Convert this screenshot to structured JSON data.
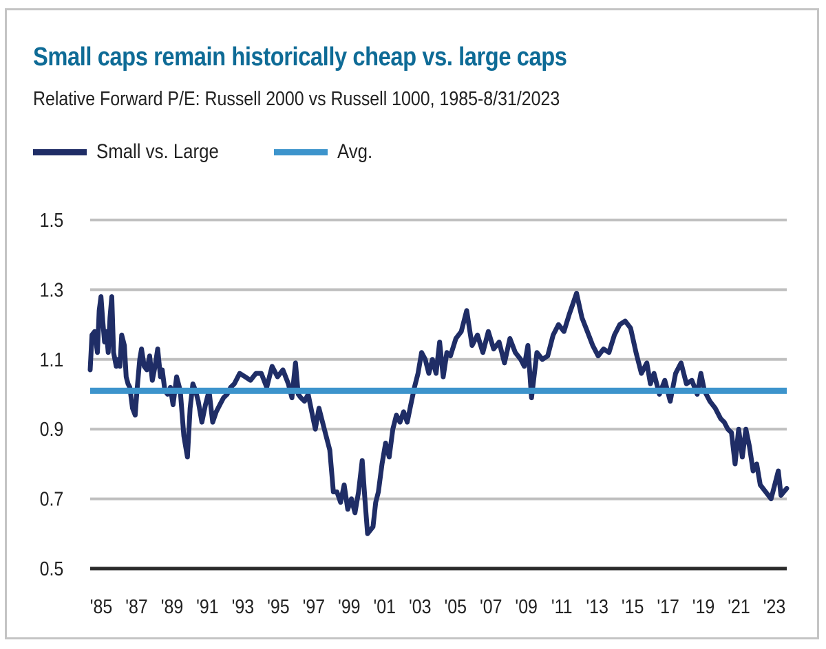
{
  "chart_data": {
    "type": "line",
    "title": "Small caps remain historically cheap vs. large caps",
    "subtitle": "Relative Forward P/E: Russell 2000 vs Russell 1000, 1985-8/31/2023",
    "xlabel": "",
    "ylabel": "",
    "ylim": [
      0.5,
      1.5
    ],
    "xlim": [
      1985.0,
      2023.67
    ],
    "yticks": [
      "1.5",
      "1.3",
      "1.1",
      "0.9",
      "0.7",
      "0.5"
    ],
    "ytick_values": [
      1.5,
      1.3,
      1.1,
      0.9,
      0.7,
      0.5
    ],
    "xticks": [
      "'85",
      "'87",
      "'89",
      "'91",
      "'93",
      "'95",
      "'97",
      "'99",
      "'01",
      "'03",
      "'05",
      "'07",
      "'09",
      "'11",
      "'13",
      "'15",
      "'17",
      "'19",
      "'21",
      "'23"
    ],
    "xtick_years": [
      1985,
      1987,
      1989,
      1991,
      1993,
      1995,
      1997,
      1999,
      2001,
      2003,
      2005,
      2007,
      2009,
      2011,
      2013,
      2015,
      2017,
      2019,
      2021,
      2023
    ],
    "grid": true,
    "legend_position": "top-left",
    "legend": [
      {
        "name": "Small vs. Large",
        "color": "#1f2d66"
      },
      {
        "name": "Avg.",
        "color": "#3d94cc"
      }
    ],
    "series": [
      {
        "name": "Small vs. Large",
        "color": "#1f2d66",
        "x": [
          1985.0,
          1985.1,
          1985.25,
          1985.4,
          1985.5,
          1985.6,
          1985.7,
          1985.8,
          1985.9,
          1986.0,
          1986.1,
          1986.2,
          1986.3,
          1986.45,
          1986.55,
          1986.65,
          1986.75,
          1986.9,
          1987.0,
          1987.1,
          1987.2,
          1987.35,
          1987.5,
          1987.6,
          1987.75,
          1987.85,
          1988.0,
          1988.15,
          1988.3,
          1988.45,
          1988.6,
          1988.75,
          1988.9,
          1989.0,
          1989.15,
          1989.3,
          1989.45,
          1989.6,
          1989.8,
          1990.0,
          1990.2,
          1990.4,
          1990.55,
          1990.7,
          1990.85,
          1991.0,
          1991.2,
          1991.4,
          1991.6,
          1991.8,
          1992.0,
          1992.2,
          1992.4,
          1992.6,
          1992.8,
          1993.0,
          1993.3,
          1993.6,
          1993.9,
          1994.2,
          1994.5,
          1994.8,
          1995.1,
          1995.4,
          1995.7,
          1996.0,
          1996.2,
          1996.4,
          1996.55,
          1996.7,
          1996.9,
          1997.1,
          1997.3,
          1997.5,
          1997.7,
          1997.9,
          1998.1,
          1998.3,
          1998.5,
          1998.7,
          1998.9,
          1999.1,
          1999.3,
          1999.5,
          1999.7,
          1999.9,
          2000.1,
          2000.25,
          2000.4,
          2000.55,
          2000.7,
          2000.85,
          2001.0,
          2001.2,
          2001.4,
          2001.6,
          2001.8,
          2002.0,
          2002.2,
          2002.4,
          2002.6,
          2002.8,
          2003.0,
          2003.2,
          2003.4,
          2003.6,
          2003.8,
          2004.0,
          2004.2,
          2004.4,
          2004.6,
          2004.8,
          2005.0,
          2005.3,
          2005.6,
          2005.9,
          2006.2,
          2006.5,
          2006.8,
          2007.1,
          2007.4,
          2007.7,
          2008.0,
          2008.3,
          2008.6,
          2008.9,
          2009.1,
          2009.3,
          2009.5,
          2009.8,
          2010.1,
          2010.4,
          2010.7,
          2011.0,
          2011.3,
          2011.6,
          2011.8,
          2012.0,
          2012.3,
          2012.6,
          2012.9,
          2013.2,
          2013.5,
          2013.8,
          2014.1,
          2014.4,
          2014.7,
          2015.0,
          2015.3,
          2015.6,
          2015.9,
          2016.1,
          2016.3,
          2016.6,
          2016.9,
          2017.2,
          2017.5,
          2017.8,
          2018.1,
          2018.4,
          2018.7,
          2018.9,
          2019.1,
          2019.4,
          2019.7,
          2020.0,
          2020.2,
          2020.4,
          2020.6,
          2020.8,
          2021.0,
          2021.2,
          2021.4,
          2021.6,
          2021.8,
          2022.0,
          2022.2,
          2022.5,
          2022.8,
          2023.0,
          2023.2,
          2023.35,
          2023.5,
          2023.67
        ],
        "values": [
          1.07,
          1.17,
          1.18,
          1.12,
          1.24,
          1.28,
          1.21,
          1.15,
          1.18,
          1.12,
          1.22,
          1.28,
          1.12,
          1.08,
          1.1,
          1.08,
          1.17,
          1.14,
          1.05,
          1.03,
          1.02,
          0.96,
          0.94,
          1.01,
          1.1,
          1.13,
          1.08,
          1.07,
          1.11,
          1.04,
          1.08,
          1.13,
          1.05,
          1.07,
          1.01,
          1.0,
          1.02,
          0.97,
          1.05,
          1.01,
          0.88,
          0.82,
          0.96,
          1.03,
          1.01,
          0.98,
          0.92,
          0.97,
          1.01,
          0.92,
          0.95,
          0.97,
          0.99,
          1.0,
          1.02,
          1.03,
          1.06,
          1.05,
          1.04,
          1.06,
          1.06,
          1.02,
          1.08,
          1.05,
          1.07,
          1.03,
          0.99,
          1.09,
          1.0,
          0.99,
          0.98,
          1.0,
          0.95,
          0.9,
          0.96,
          0.92,
          0.88,
          0.84,
          0.72,
          0.72,
          0.69,
          0.74,
          0.67,
          0.7,
          0.66,
          0.72,
          0.81,
          0.7,
          0.6,
          0.61,
          0.62,
          0.69,
          0.72,
          0.8,
          0.86,
          0.82,
          0.9,
          0.94,
          0.92,
          0.95,
          0.92,
          0.97,
          1.02,
          1.06,
          1.12,
          1.1,
          1.06,
          1.1,
          1.06,
          1.15,
          1.05,
          1.12,
          1.11,
          1.16,
          1.18,
          1.24,
          1.14,
          1.17,
          1.12,
          1.18,
          1.13,
          1.15,
          1.09,
          1.16,
          1.12,
          1.1,
          1.08,
          1.14,
          0.99,
          1.12,
          1.1,
          1.11,
          1.17,
          1.2,
          1.18,
          1.23,
          1.26,
          1.29,
          1.22,
          1.18,
          1.14,
          1.11,
          1.13,
          1.12,
          1.17,
          1.2,
          1.21,
          1.19,
          1.12,
          1.06,
          1.09,
          1.03,
          1.06,
          1.0,
          1.04,
          0.98,
          1.06,
          1.09,
          1.03,
          1.04,
          1.0,
          1.06,
          1.01,
          0.98,
          0.96,
          0.93,
          0.92,
          0.9,
          0.89,
          0.8,
          0.9,
          0.82,
          0.9,
          0.85,
          0.78,
          0.8,
          0.74,
          0.72,
          0.7,
          0.74,
          0.78,
          0.71,
          0.72,
          0.73
        ]
      },
      {
        "name": "Avg.",
        "color": "#3d94cc",
        "x": [
          1985.0,
          2023.67
        ],
        "values": [
          1.01,
          1.01
        ]
      }
    ]
  }
}
